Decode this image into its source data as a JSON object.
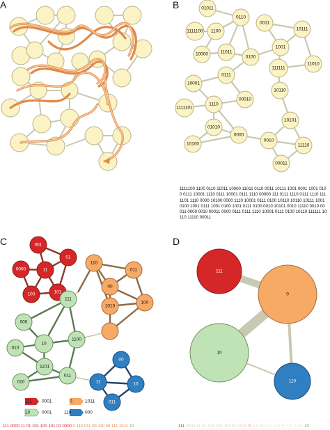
{
  "panels": {
    "a": "A",
    "b": "B",
    "c": "C",
    "d": "D"
  },
  "colors": {
    "yellow": "#fbf3c4",
    "orange": "#f7a966",
    "red": "#d62728",
    "green": "#bfe3b4",
    "blue": "#2f7fc1",
    "edge": "#bdbfa8",
    "path": "#f5b27a",
    "pathStroke": "#e08a48"
  },
  "panel_b": {
    "nodes": [
      "01011",
      "0110",
      "0011",
      "10111",
      "1111100",
      "1100",
      "1001",
      "10000",
      "11011",
      "0100",
      "111111",
      "11010",
      "0111",
      "10001",
      "00010",
      "10110",
      "1110",
      "1111101",
      "01010",
      "10101",
      "0000",
      "10100",
      "0010",
      "11110",
      "00011"
    ]
  },
  "panel_c": {
    "nodes": [
      "001",
      "01",
      "110",
      "011",
      "0000",
      "11",
      "00",
      "101",
      "100",
      "1010",
      "100",
      "111",
      "000",
      "1100",
      "010",
      "10",
      "1101",
      "010",
      "011",
      "00",
      "11",
      "10",
      "011"
    ]
  },
  "legend": {
    "items": [
      {
        "pre": "111",
        "post": "0001"
      },
      {
        "pre": "0",
        "post": "1011"
      },
      {
        "pre": "10",
        "post": "0001"
      },
      {
        "pre": "110",
        "post": "000"
      }
    ]
  },
  "panel_d": {
    "nodes": [
      "111",
      "0",
      "10",
      "110"
    ]
  },
  "sequence": "1111100 1100 0110 11011 10000 11011 0110 0011 10111 1001 0001 1001 0100 0111 10001 1110 0111 10001 0111 1110 00000 111 0111 1110 0111 1110 1111101 1110 0000 10100 0000 1110 10001 0111 0100 10110 10110 10111 1001 0100 1001 0111 1001 0100 1001 0111 0100 0010 10101 0010 11110 0010 00011 0000 0010 00011 0000 0111 0111 1110 10001 0111 0100 10110 111111 10110 11110 00011",
  "bottom_c": [
    "111",
    "0000",
    "11",
    "01",
    "101",
    "100",
    "101",
    "01",
    "0000",
    "0",
    "110",
    "011",
    "00",
    "110",
    "00",
    "111",
    "1011",
    "10"
  ],
  "bottom_d": [
    "111",
    "0000 11 01 101 100 101 01 0000",
    "0",
    "110 011 00 110 00 111 1011",
    "10"
  ]
}
